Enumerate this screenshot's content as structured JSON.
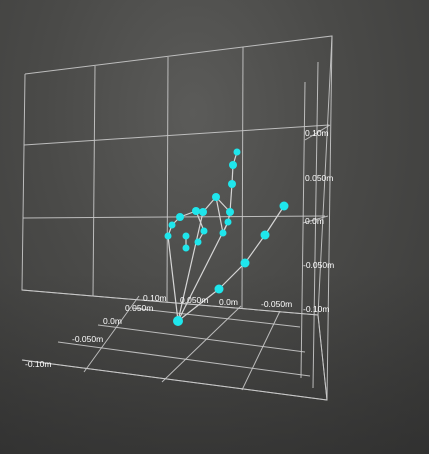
{
  "scene": {
    "title": "",
    "joint_color": "#1fe6ec",
    "grid_color": "#c9c9c9",
    "background": "#4a4a48"
  },
  "axis_labels": {
    "right_wall": [
      "0.10m",
      "0.050m",
      "0.0m",
      "-0.050m",
      "-0.10m"
    ],
    "floor_front": [
      "0.10m",
      "0.050m",
      "0.0m",
      "-0.050m",
      "-0.10m"
    ],
    "floor_right": [
      "0.050m",
      "0.0m",
      "-0.050m"
    ]
  },
  "hand": {
    "joint_count": 21,
    "bones": 20
  }
}
